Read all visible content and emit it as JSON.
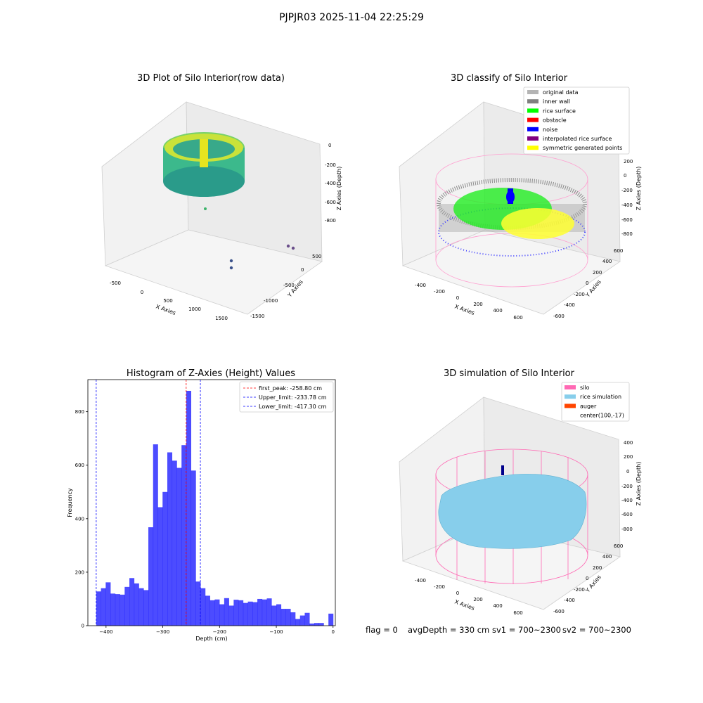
{
  "figure_title": "PJPJR03 2025-11-04 22:25:29",
  "panels": {
    "raw": {
      "title": "3D Plot of Silo Interior(row data)",
      "xlabel": "X Axies",
      "ylabel": "Y Axies",
      "zlabel": "Z Axies (Depth)",
      "xticks": [
        "-500",
        "0",
        "500",
        "1000",
        "1500"
      ],
      "yticks": [
        "500",
        "0",
        "-500",
        "-1000",
        "-1500"
      ],
      "zticks": [
        "0",
        "-200",
        "-400",
        "-600",
        "-800"
      ]
    },
    "classify": {
      "title": "3D classify of Silo Interior",
      "xlabel": "X Axies",
      "ylabel": "Y Axies",
      "zlabel": "Z Axies (Depth)",
      "xticks": [
        "-400",
        "-200",
        "0",
        "200",
        "400",
        "600"
      ],
      "yticks": [
        "600",
        "400",
        "200",
        "0",
        "-200",
        "-400",
        "-600"
      ],
      "zticks": [
        "200",
        "0",
        "-200",
        "-400",
        "-600",
        "-800"
      ],
      "legend": [
        {
          "label": "original data",
          "color": "#b4b4b4"
        },
        {
          "label": "inner wall",
          "color": "#808080"
        },
        {
          "label": "rice surface",
          "color": "#00ff00"
        },
        {
          "label": "obstacle",
          "color": "#ff0000"
        },
        {
          "label": "noise",
          "color": "#0000ff"
        },
        {
          "label": "interpolated rice surface",
          "color": "#800080"
        },
        {
          "label": "symmetric generated points",
          "color": "#ffff00"
        }
      ]
    },
    "simulation": {
      "title": "3D simulation of Silo Interior",
      "xlabel": "X Axies",
      "ylabel": "Y Axies",
      "zlabel": "Z Axies (Depth)",
      "xticks": [
        "-400",
        "-200",
        "0",
        "200",
        "400",
        "600"
      ],
      "yticks": [
        "600",
        "400",
        "200",
        "0",
        "-200",
        "-400",
        "-600"
      ],
      "zticks": [
        "400",
        "200",
        "0",
        "-200",
        "-400",
        "-600",
        "-800"
      ],
      "legend": [
        {
          "label": "silo",
          "color": "#ff69b4"
        },
        {
          "label": "rice simulation",
          "color": "#87ceeb"
        },
        {
          "label": "auger",
          "color": "#ff4500"
        },
        {
          "label": "center(100,-17)",
          "color": ""
        }
      ]
    }
  },
  "status": {
    "flag": "flag = 0",
    "avg_depth": "avgDepth = 330 cm",
    "sv1": "sv1 = 700~2300",
    "sv2": "sv2 = 700~2300"
  },
  "chart_data": [
    {
      "type": "bar",
      "title": "Histogram of Z-Axies (Height) Values",
      "xlabel": "Depth (cm)",
      "ylabel": "Frequency",
      "xlim": [
        -432,
        4
      ],
      "ylim": [
        0,
        920
      ],
      "xticks": [
        -400,
        -300,
        -200,
        -100,
        0
      ],
      "yticks": [
        0,
        200,
        400,
        600,
        800
      ],
      "bar_color": "#0000ff",
      "bin_edges_start": -417.3,
      "bin_width": 8.35,
      "values": [
        128,
        140,
        162,
        120,
        118,
        116,
        145,
        178,
        158,
        140,
        133,
        368,
        678,
        443,
        500,
        648,
        617,
        590,
        675,
        878,
        580,
        165,
        140,
        112,
        95,
        98,
        80,
        103,
        75,
        97,
        95,
        85,
        90,
        88,
        100,
        98,
        102,
        75,
        80,
        63,
        63,
        50,
        25,
        38,
        48,
        8,
        10,
        10,
        0,
        45
      ],
      "vlines": [
        {
          "label": "first_peak: -258.80 cm",
          "x": -258.8,
          "color": "#ff0000"
        },
        {
          "label": "Upper_limit: -233.78 cm",
          "x": -233.78,
          "color": "#0000ff"
        },
        {
          "label": "Lower_limit: -417.30 cm",
          "x": -417.3,
          "color": "#0000ff"
        }
      ],
      "legend_position": "upper right"
    }
  ]
}
